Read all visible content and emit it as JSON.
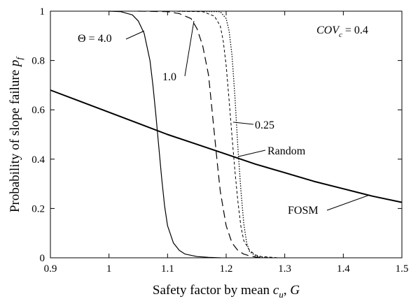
{
  "chart_data": {
    "type": "line",
    "xlabel_parts": {
      "pre": "Safety factor by mean ",
      "var": "c",
      "sub": "u",
      "post": ", ",
      "var2": "G"
    },
    "ylabel_parts": {
      "pre": "Probability of slope failure ",
      "var": "p",
      "sub": "f"
    },
    "xlim": [
      0.9,
      1.5
    ],
    "ylim": [
      0,
      1
    ],
    "xticks": [
      "0.9",
      "1",
      "1.1",
      "1.2",
      "1.3",
      "1.4",
      "1.5"
    ],
    "yticks": [
      "0",
      "0.2",
      "0.4",
      "0.6",
      "0.8",
      "1"
    ],
    "grid": false,
    "annotation_cov": {
      "var": "COV",
      "sub": "c",
      "post": " = 0.4"
    },
    "series": [
      {
        "name": "Θ = 4.0",
        "style": "solid",
        "x": [
          1.0,
          1.02,
          1.04,
          1.05,
          1.06,
          1.07,
          1.075,
          1.08,
          1.085,
          1.09,
          1.095,
          1.1,
          1.11,
          1.12,
          1.13,
          1.15,
          1.17,
          1.19
        ],
        "y": [
          1.0,
          0.998,
          0.985,
          0.96,
          0.91,
          0.8,
          0.7,
          0.58,
          0.45,
          0.32,
          0.21,
          0.13,
          0.06,
          0.03,
          0.015,
          0.005,
          0.002,
          0.0
        ]
      },
      {
        "name": "1.0",
        "style": "dash",
        "x": [
          1.05,
          1.1,
          1.12,
          1.14,
          1.15,
          1.16,
          1.17,
          1.175,
          1.18,
          1.185,
          1.19,
          1.2,
          1.21,
          1.22,
          1.23,
          1.24,
          1.25,
          1.27
        ],
        "y": [
          1.0,
          0.998,
          0.99,
          0.97,
          0.93,
          0.86,
          0.74,
          0.62,
          0.5,
          0.38,
          0.27,
          0.13,
          0.06,
          0.03,
          0.015,
          0.008,
          0.003,
          0.0
        ]
      },
      {
        "name": "0.25",
        "style": "shortdash",
        "x": [
          1.1,
          1.16,
          1.18,
          1.19,
          1.195,
          1.2,
          1.205,
          1.21,
          1.215,
          1.22,
          1.225,
          1.23,
          1.24,
          1.25,
          1.26,
          1.29
        ],
        "y": [
          1.0,
          0.998,
          0.98,
          0.94,
          0.88,
          0.78,
          0.64,
          0.49,
          0.35,
          0.23,
          0.13,
          0.07,
          0.03,
          0.012,
          0.005,
          0.0
        ]
      },
      {
        "name": "Random",
        "style": "dot",
        "x": [
          1.12,
          1.19,
          1.2,
          1.205,
          1.21,
          1.215,
          1.22,
          1.225,
          1.23,
          1.235,
          1.24,
          1.25,
          1.26,
          1.28
        ],
        "y": [
          1.0,
          0.998,
          0.97,
          0.92,
          0.82,
          0.65,
          0.45,
          0.28,
          0.14,
          0.06,
          0.025,
          0.008,
          0.002,
          0.0
        ]
      },
      {
        "name": "FOSM",
        "style": "thick",
        "x": [
          0.9,
          0.95,
          1.0,
          1.05,
          1.1,
          1.15,
          1.2,
          1.25,
          1.3,
          1.35,
          1.4,
          1.45,
          1.5
        ],
        "y": [
          0.68,
          0.635,
          0.59,
          0.545,
          0.5,
          0.46,
          0.42,
          0.38,
          0.345,
          0.31,
          0.28,
          0.25,
          0.225
        ]
      }
    ],
    "labels": {
      "theta_prefix": "Θ = 4.0",
      "one": "1.0",
      "quarter": "0.25",
      "random": "Random",
      "fosm": "FOSM"
    }
  }
}
